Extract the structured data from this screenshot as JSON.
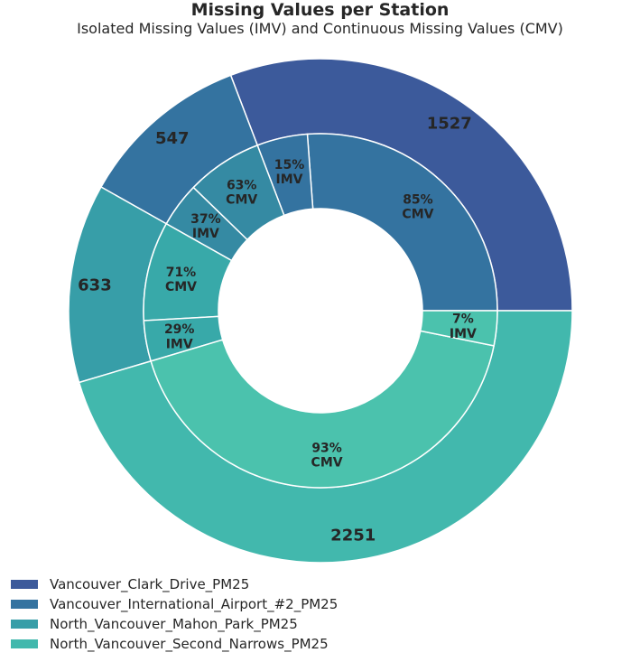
{
  "chart_data": {
    "type": "pie",
    "title": "Missing Values per Station",
    "subtitle": "Isolated Missing Values (IMV) and Continuous Missing Values (CMV)",
    "outer": [
      {
        "name": "Vancouver_Clark_Drive_PM25",
        "value": 1527,
        "label": "1527",
        "color": "#3c5a9b"
      },
      {
        "name": "Vancouver_International_Airport_#2_PM25",
        "value": 547,
        "label": "547",
        "color": "#3473a0"
      },
      {
        "name": "North_Vancouver_Mahon_Park_PM25",
        "value": 633,
        "label": "633",
        "color": "#379ea8"
      },
      {
        "name": "North_Vancouver_Second_Narrows_PM25",
        "value": 2251,
        "label": "2251",
        "color": "#42b8ad"
      }
    ],
    "inner": [
      {
        "station": "Vancouver_Clark_Drive_PM25",
        "type": "CMV",
        "percent": "85%",
        "fraction": 0.85,
        "color": "#3473a0"
      },
      {
        "station": "Vancouver_Clark_Drive_PM25",
        "type": "IMV",
        "percent": "15%",
        "fraction": 0.15,
        "color": "#3473a0"
      },
      {
        "station": "Vancouver_International_Airport_#2_PM25",
        "type": "CMV",
        "percent": "63%",
        "fraction": 0.63,
        "color": "#358aa3"
      },
      {
        "station": "Vancouver_International_Airport_#2_PM25",
        "type": "IMV",
        "percent": "37%",
        "fraction": 0.37,
        "color": "#358aa3"
      },
      {
        "station": "North_Vancouver_Mahon_Park_PM25",
        "type": "CMV",
        "percent": "71%",
        "fraction": 0.71,
        "color": "#38a9a9"
      },
      {
        "station": "North_Vancouver_Mahon_Park_PM25",
        "type": "IMV",
        "percent": "29%",
        "fraction": 0.29,
        "color": "#38a9a9"
      },
      {
        "station": "North_Vancouver_Second_Narrows_PM25",
        "type": "CMV",
        "percent": "93%",
        "fraction": 0.93,
        "color": "#4bc2ad"
      },
      {
        "station": "North_Vancouver_Second_Narrows_PM25",
        "type": "IMV",
        "percent": "7%",
        "fraction": 0.07,
        "color": "#4bc2ad"
      }
    ],
    "legend_position": "bottom-left"
  }
}
